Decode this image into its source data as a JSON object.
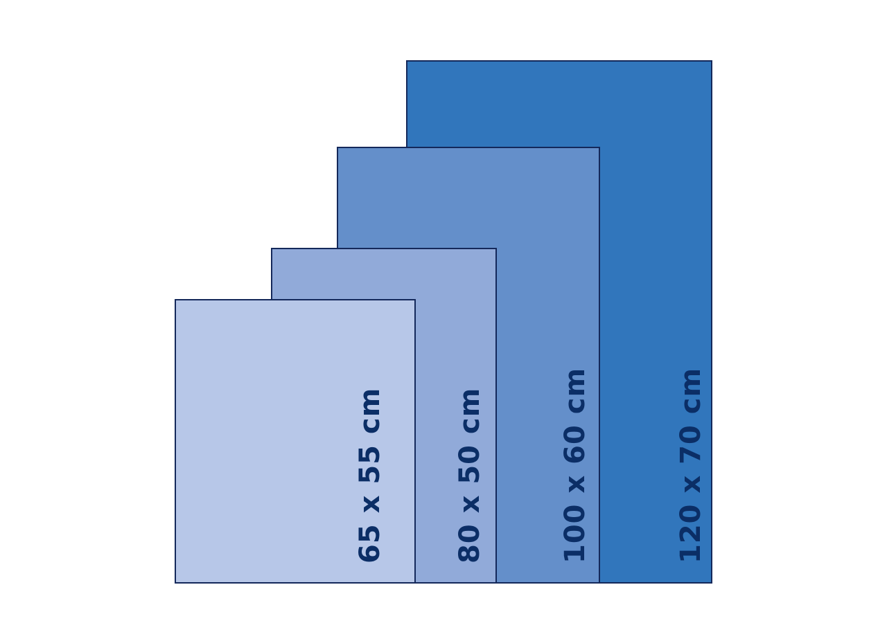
{
  "sizes": [
    {
      "label": "120 x 70 cm",
      "color": "#3176bc"
    },
    {
      "label": "100 x 60 cm",
      "color": "#648fca"
    },
    {
      "label": "80 x 50 cm",
      "color": "#91aad9"
    },
    {
      "label": "65 x 55 cm",
      "color": "#b7c7e8"
    }
  ],
  "border_color": "#14285a",
  "text_color": "#0b2e66"
}
